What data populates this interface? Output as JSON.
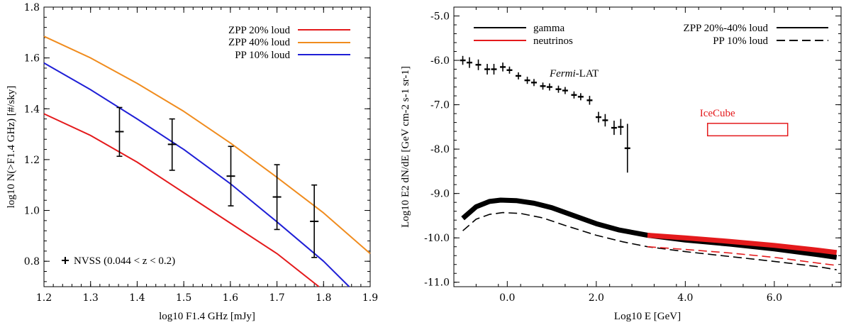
{
  "chart_data": [
    {
      "type": "line",
      "xlabel": "log10 F1.4 GHz [mJy]",
      "ylabel": "log10 N(>F1.4 GHz) [#/sky]",
      "xlim": [
        1.2,
        1.9
      ],
      "ylim": [
        0.7,
        1.8
      ],
      "xticks": [
        "1.2",
        "1.3",
        "1.4",
        "1.5",
        "1.6",
        "1.7",
        "1.8",
        "1.9"
      ],
      "xtick_values": [
        1.2,
        1.3,
        1.4,
        1.5,
        1.6,
        1.7,
        1.8,
        1.9
      ],
      "yticks": [
        "0.8",
        "1.0",
        "1.2",
        "1.4",
        "1.6",
        "1.8"
      ],
      "ytick_values": [
        0.8,
        1.0,
        1.2,
        1.4,
        1.6,
        1.8
      ],
      "series": [
        {
          "name": "ZPP 20% loud",
          "color": "#e41a1c",
          "x": [
            1.2,
            1.3,
            1.4,
            1.5,
            1.6,
            1.7,
            1.79
          ],
          "y": [
            1.38,
            1.295,
            1.19,
            1.07,
            0.95,
            0.83,
            0.7
          ]
        },
        {
          "name": "ZPP 40% loud",
          "color": "#f08c1e",
          "x": [
            1.2,
            1.3,
            1.4,
            1.5,
            1.6,
            1.7,
            1.8,
            1.9
          ],
          "y": [
            1.685,
            1.6,
            1.5,
            1.39,
            1.265,
            1.13,
            0.99,
            0.83
          ]
        },
        {
          "name": "PP 10% loud",
          "color": "#1f1fd6",
          "x": [
            1.2,
            1.3,
            1.4,
            1.5,
            1.6,
            1.7,
            1.8,
            1.855
          ],
          "y": [
            1.58,
            1.475,
            1.36,
            1.24,
            1.105,
            0.955,
            0.8,
            0.7
          ]
        }
      ],
      "points": {
        "name": "NVSS (0.044 < z < 0.2)",
        "x": [
          1.362,
          1.475,
          1.601,
          1.7,
          1.78
        ],
        "y": [
          1.31,
          1.26,
          1.135,
          1.053,
          0.957
        ],
        "ylo": [
          1.213,
          1.158,
          1.018,
          0.925,
          0.815
        ],
        "yhi": [
          1.405,
          1.36,
          1.252,
          1.18,
          1.1
        ]
      }
    },
    {
      "type": "line",
      "xlabel": "Log10 E [GeV]",
      "ylabel": "Log10 E2 dN/dE [GeV cm-2 s-1 sr-1]",
      "xlim": [
        -1.2,
        7.5
      ],
      "ylim": [
        -11.1,
        -4.8
      ],
      "xticks": [
        "0.0",
        "2.0",
        "4.0",
        "6.0"
      ],
      "xtick_values": [
        0,
        2,
        4,
        6
      ],
      "yticks": [
        "-5.0",
        "-6.0",
        "-7.0",
        "-8.0",
        "-9.0",
        "-10.0",
        "-11.0"
      ],
      "ytick_values": [
        -5,
        -6,
        -7,
        -8,
        -9,
        -10,
        -11
      ],
      "legend_left": [
        {
          "name": "gamma",
          "color": "#000000"
        },
        {
          "name": "neutrinos",
          "color": "#e41a1c"
        }
      ],
      "legend_right": [
        {
          "name": "ZPP 20%-40% loud",
          "style": "solid"
        },
        {
          "name": "PP 10% loud",
          "style": "dashed"
        }
      ],
      "series": [
        {
          "name": "ZPP gamma",
          "color": "#000000",
          "style": "thick",
          "x": [
            -1.0,
            -0.7,
            -0.4,
            -0.15,
            0.2,
            0.6,
            1.0,
            1.5,
            2.0,
            2.5,
            3.15,
            4.0,
            5.0,
            6.0,
            7.0,
            7.4
          ],
          "y": [
            -9.56,
            -9.3,
            -9.18,
            -9.15,
            -9.16,
            -9.22,
            -9.32,
            -9.5,
            -9.68,
            -9.82,
            -9.94,
            -10.05,
            -10.14,
            -10.25,
            -10.38,
            -10.44
          ]
        },
        {
          "name": "ZPP neutrinos",
          "color": "#e41a1c",
          "style": "thick",
          "x": [
            3.15,
            4.0,
            5.0,
            6.0,
            7.0,
            7.4
          ],
          "y": [
            -9.94,
            -10.0,
            -10.08,
            -10.17,
            -10.28,
            -10.33
          ]
        },
        {
          "name": "PP gamma",
          "color": "#000000",
          "style": "dashed",
          "x": [
            -1.0,
            -0.7,
            -0.4,
            -0.1,
            0.3,
            0.8,
            1.3,
            2.0,
            2.6,
            3.15,
            4.0,
            5.0,
            6.0,
            7.0,
            7.4
          ],
          "y": [
            -9.84,
            -9.58,
            -9.47,
            -9.43,
            -9.45,
            -9.55,
            -9.72,
            -9.94,
            -10.09,
            -10.2,
            -10.31,
            -10.42,
            -10.53,
            -10.65,
            -10.72
          ]
        },
        {
          "name": "PP neutrinos",
          "color": "#e41a1c",
          "style": "dashed",
          "x": [
            3.15,
            4.0,
            5.0,
            6.0,
            7.0,
            7.4
          ],
          "y": [
            -10.2,
            -10.26,
            -10.34,
            -10.44,
            -10.57,
            -10.62
          ]
        }
      ],
      "fermi_points": {
        "label_italic": "Fermi",
        "label_rest": "-LAT",
        "x": [
          -1.0,
          -0.85,
          -0.65,
          -0.45,
          -0.3,
          -0.1,
          0.05,
          0.25,
          0.45,
          0.6,
          0.8,
          0.95,
          1.15,
          1.3,
          1.5,
          1.65,
          1.85,
          2.05,
          2.2,
          2.4,
          2.55,
          2.7
        ],
        "y": [
          -6.0,
          -6.05,
          -6.1,
          -6.2,
          -6.2,
          -6.15,
          -6.22,
          -6.35,
          -6.45,
          -6.5,
          -6.58,
          -6.6,
          -6.65,
          -6.68,
          -6.78,
          -6.82,
          -6.9,
          -7.28,
          -7.35,
          -7.52,
          -7.5,
          -7.98
        ],
        "err": [
          0.1,
          0.12,
          0.12,
          0.12,
          0.12,
          0.1,
          0.08,
          0.08,
          0.08,
          0.08,
          0.08,
          0.08,
          0.08,
          0.08,
          0.08,
          0.08,
          0.1,
          0.12,
          0.14,
          0.16,
          0.18,
          0.55
        ]
      },
      "icecube_box": {
        "label": "IceCube",
        "color": "#e41a1c",
        "x": [
          4.5,
          6.3
        ],
        "y": [
          -7.7,
          -7.42
        ]
      }
    }
  ]
}
